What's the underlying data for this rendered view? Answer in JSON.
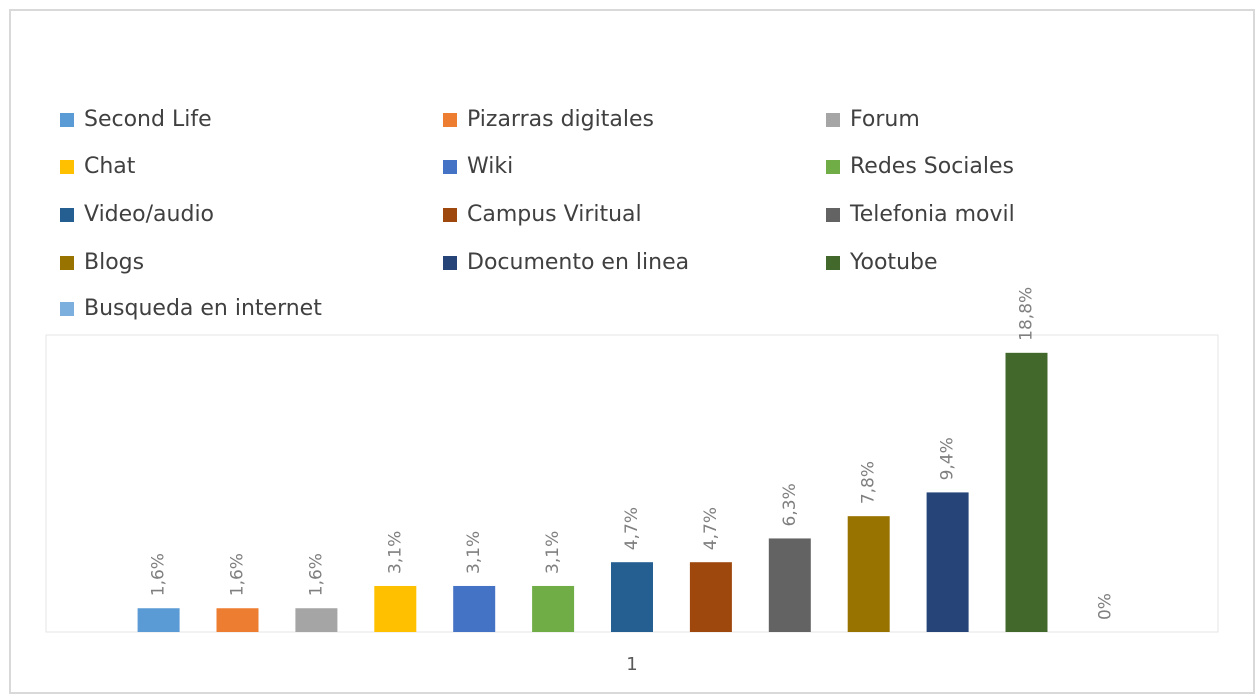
{
  "chart_data": {
    "type": "bar",
    "categories": [
      "1"
    ],
    "ylim": [
      0,
      20
    ],
    "series": [
      {
        "name": "Second Life",
        "color": "#5b9bd5",
        "values": [
          1.6
        ],
        "value_labels": [
          "1,6%"
        ]
      },
      {
        "name": "Pizarras digitales",
        "color": "#ed7d31",
        "values": [
          1.6
        ],
        "value_labels": [
          "1,6%"
        ]
      },
      {
        "name": "Forum",
        "color": "#a5a5a5",
        "values": [
          1.6
        ],
        "value_labels": [
          "1,6%"
        ]
      },
      {
        "name": "Chat",
        "color": "#ffc000",
        "values": [
          3.1
        ],
        "value_labels": [
          "3,1%"
        ]
      },
      {
        "name": "Wiki",
        "color": "#4472c4",
        "values": [
          3.1
        ],
        "value_labels": [
          "3,1%"
        ]
      },
      {
        "name": "Redes Sociales",
        "color": "#70ad47",
        "values": [
          3.1
        ],
        "value_labels": [
          "3,1%"
        ]
      },
      {
        "name": "Video/audio",
        "color": "#255e91",
        "values": [
          4.7
        ],
        "value_labels": [
          "4,7%"
        ]
      },
      {
        "name": "Campus Viritual",
        "color": "#9e480e",
        "values": [
          4.7
        ],
        "value_labels": [
          "4,7%"
        ]
      },
      {
        "name": "Telefonia movil",
        "color": "#636363",
        "values": [
          6.3
        ],
        "value_labels": [
          "6,3%"
        ]
      },
      {
        "name": "Blogs",
        "color": "#997300",
        "values": [
          7.8
        ],
        "value_labels": [
          "7,8%"
        ]
      },
      {
        "name": "Documento en linea",
        "color": "#264478",
        "values": [
          9.4
        ],
        "value_labels": [
          "9,4%"
        ]
      },
      {
        "name": "Yootube",
        "color": "#43682b",
        "values": [
          18.8
        ],
        "value_labels": [
          "18,8%"
        ]
      },
      {
        "name": "Busqueda en internet",
        "color": "#7cafdd",
        "values": [
          0
        ],
        "value_labels": [
          "0%"
        ]
      }
    ]
  }
}
